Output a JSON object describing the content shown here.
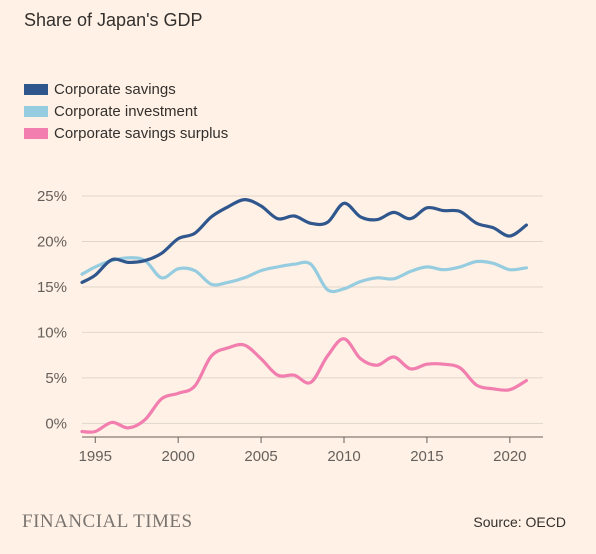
{
  "title": "Share of Japan's GDP",
  "source": "Source: OECD",
  "brand": "FINANCIAL TIMES",
  "colors": {
    "background": "#FFF1E5",
    "grid": "#E0D6CC",
    "axis": "#66605C"
  },
  "chart_data": {
    "type": "line",
    "title": "Share of Japan's GDP",
    "xlabel": "",
    "ylabel": "",
    "xlim": [
      1994.2,
      2022
    ],
    "ylim": [
      -1.5,
      25
    ],
    "x_ticks": [
      1995,
      2000,
      2005,
      2010,
      2015,
      2020
    ],
    "x_tick_labels": [
      "1995",
      "2000",
      "2005",
      "2010",
      "2015",
      "2020"
    ],
    "y_ticks": [
      0,
      5,
      10,
      15,
      20,
      25
    ],
    "y_tick_labels": [
      "0%",
      "5%",
      "10%",
      "15%",
      "20%",
      "25%"
    ],
    "grid": true,
    "legend_position": "top-left",
    "series": [
      {
        "name": "Corporate savings",
        "color": "#2F578E",
        "x": [
          1994.2,
          1995,
          1996,
          1997,
          1998,
          1999,
          2000,
          2001,
          2002,
          2003,
          2004,
          2005,
          2006,
          2007,
          2008,
          2009,
          2010,
          2011,
          2012,
          2013,
          2014,
          2015,
          2016,
          2017,
          2018,
          2019,
          2020,
          2021
        ],
        "y": [
          15.5,
          16.3,
          18.0,
          17.7,
          17.9,
          18.7,
          20.3,
          20.9,
          22.7,
          23.8,
          24.6,
          23.9,
          22.5,
          22.8,
          22.0,
          22.1,
          24.2,
          22.7,
          22.4,
          23.2,
          22.5,
          23.7,
          23.4,
          23.3,
          22.0,
          21.5,
          20.6,
          21.8
        ]
      },
      {
        "name": "Corporate investment",
        "color": "#96CCE0",
        "x": [
          1994.2,
          1995,
          1996,
          1997,
          1998,
          1999,
          2000,
          2001,
          2002,
          2003,
          2004,
          2005,
          2006,
          2007,
          2008,
          2009,
          2010,
          2011,
          2012,
          2013,
          2014,
          2015,
          2016,
          2017,
          2018,
          2019,
          2020,
          2021
        ],
        "y": [
          16.4,
          17.2,
          17.9,
          18.2,
          17.9,
          16.0,
          17.0,
          16.8,
          15.3,
          15.5,
          16.0,
          16.8,
          17.2,
          17.5,
          17.5,
          14.7,
          14.8,
          15.6,
          16.0,
          15.9,
          16.7,
          17.2,
          16.9,
          17.2,
          17.8,
          17.6,
          16.9,
          17.1
        ]
      },
      {
        "name": "Corporate savings surplus",
        "color": "#F17EAE",
        "x": [
          1994.2,
          1995,
          1996,
          1997,
          1998,
          1999,
          2000,
          2001,
          2002,
          2003,
          2004,
          2005,
          2006,
          2007,
          2008,
          2009,
          2010,
          2011,
          2012,
          2013,
          2014,
          2015,
          2016,
          2017,
          2018,
          2019,
          2020,
          2021
        ],
        "y": [
          -0.9,
          -0.9,
          0.1,
          -0.5,
          0.4,
          2.7,
          3.3,
          4.1,
          7.4,
          8.3,
          8.6,
          7.1,
          5.3,
          5.3,
          4.5,
          7.4,
          9.3,
          7.1,
          6.4,
          7.3,
          6.0,
          6.5,
          6.5,
          6.1,
          4.2,
          3.8,
          3.7,
          4.7
        ]
      }
    ]
  }
}
